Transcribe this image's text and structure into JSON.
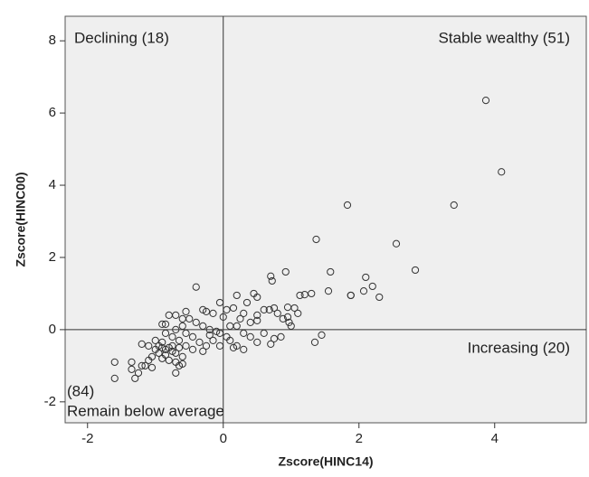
{
  "chart_data": {
    "type": "scatter",
    "x_label": "Zscore(HINC14)",
    "y_label": "Zscore(HINC00)",
    "xlim": [
      -2.33,
      5.35
    ],
    "ylim": [
      -2.58,
      8.68
    ],
    "xticks": [
      -2,
      0,
      2,
      4
    ],
    "yticks": [
      -2,
      0,
      2,
      4,
      6,
      8
    ],
    "reference_lines": {
      "x": 0,
      "y": 0
    },
    "marker_color": "#333333",
    "background": "#efefef",
    "annotations": [
      "Declining (18)",
      "Stable wealthy (51)",
      "Increasing (20)",
      "(84)",
      "Remain below average"
    ],
    "x": [
      3.87,
      4.1,
      3.4,
      1.83,
      1.37,
      2.55,
      2.83,
      0.92,
      1.58,
      2.1,
      0.7,
      0.72,
      2.2,
      2.07,
      1.55,
      1.88,
      1.88,
      2.3,
      1.3,
      1.2,
      1.13,
      1.05,
      1.1,
      0.95,
      0.88,
      0.97,
      1.0,
      0.75,
      0.68,
      0.8,
      0.75,
      0.7,
      1.35,
      1.45,
      0.5,
      0.45,
      0.35,
      0.2,
      0.15,
      0.05,
      -0.05,
      0.0,
      0.3,
      0.5,
      0.5,
      0.4,
      0.25,
      0.2,
      0.1,
      0.3,
      0.4,
      0.5,
      0.6,
      0.2,
      0.1,
      0.15,
      0.05,
      -0.05,
      0.3,
      -0.4,
      -0.25,
      -0.15,
      -0.3,
      -0.55,
      -0.5,
      -0.4,
      -0.3,
      -0.2,
      -0.1,
      -0.6,
      -0.7,
      -0.8,
      -0.6,
      -0.7,
      -0.55,
      -0.45,
      -0.35,
      -0.25,
      -0.15,
      -0.05,
      -0.3,
      -0.45,
      -0.55,
      -0.65,
      -0.75,
      -0.85,
      -0.9,
      -0.85,
      -1.0,
      -0.95,
      -0.9,
      -0.85,
      -0.8,
      -0.75,
      -0.7,
      -0.65,
      -0.85,
      -0.95,
      -1.0,
      -1.05,
      -0.9,
      -0.8,
      -0.7,
      -0.65,
      -0.7,
      -0.6,
      -1.1,
      -1.15,
      -1.05,
      -1.2,
      -1.25,
      -1.3,
      -1.35,
      -1.35,
      -1.1,
      -1.2,
      -1.6,
      -1.6,
      -0.6,
      -0.2,
      0.6,
      0.85,
      0.95,
      -0.75,
      -0.9
    ],
    "y": [
      6.35,
      4.37,
      3.45,
      3.45,
      2.5,
      2.38,
      1.65,
      1.6,
      1.6,
      1.45,
      1.48,
      1.35,
      1.2,
      1.07,
      1.07,
      0.95,
      0.95,
      0.9,
      1.0,
      0.97,
      0.95,
      0.6,
      0.45,
      0.62,
      0.3,
      0.2,
      0.1,
      0.6,
      0.55,
      0.45,
      -0.25,
      -0.4,
      -0.35,
      -0.15,
      0.9,
      1.0,
      0.75,
      0.95,
      0.6,
      0.55,
      0.75,
      0.35,
      0.45,
      0.4,
      0.25,
      0.2,
      0.3,
      0.1,
      0.1,
      -0.1,
      -0.2,
      -0.35,
      -0.1,
      -0.45,
      -0.3,
      -0.5,
      -0.2,
      -0.1,
      -0.55,
      1.18,
      0.5,
      0.45,
      0.55,
      0.5,
      0.3,
      0.2,
      0.1,
      0.0,
      -0.05,
      0.3,
      0.4,
      0.4,
      0.1,
      0.0,
      -0.1,
      -0.2,
      -0.35,
      -0.45,
      -0.3,
      -0.45,
      -0.6,
      -0.55,
      -0.45,
      -0.3,
      -0.2,
      -0.1,
      0.15,
      0.15,
      -0.3,
      -0.45,
      -0.5,
      -0.55,
      -0.5,
      -0.6,
      -0.65,
      -0.5,
      -0.7,
      -0.65,
      -0.55,
      -0.75,
      -0.8,
      -0.85,
      -0.9,
      -1.0,
      -1.2,
      -0.95,
      -0.85,
      -1.0,
      -1.05,
      -1.0,
      -1.2,
      -1.35,
      -0.9,
      -1.1,
      -0.45,
      -0.4,
      -0.9,
      -1.35,
      -0.75,
      -0.15,
      0.55,
      -0.2,
      0.35,
      -0.45,
      -0.35
    ]
  }
}
